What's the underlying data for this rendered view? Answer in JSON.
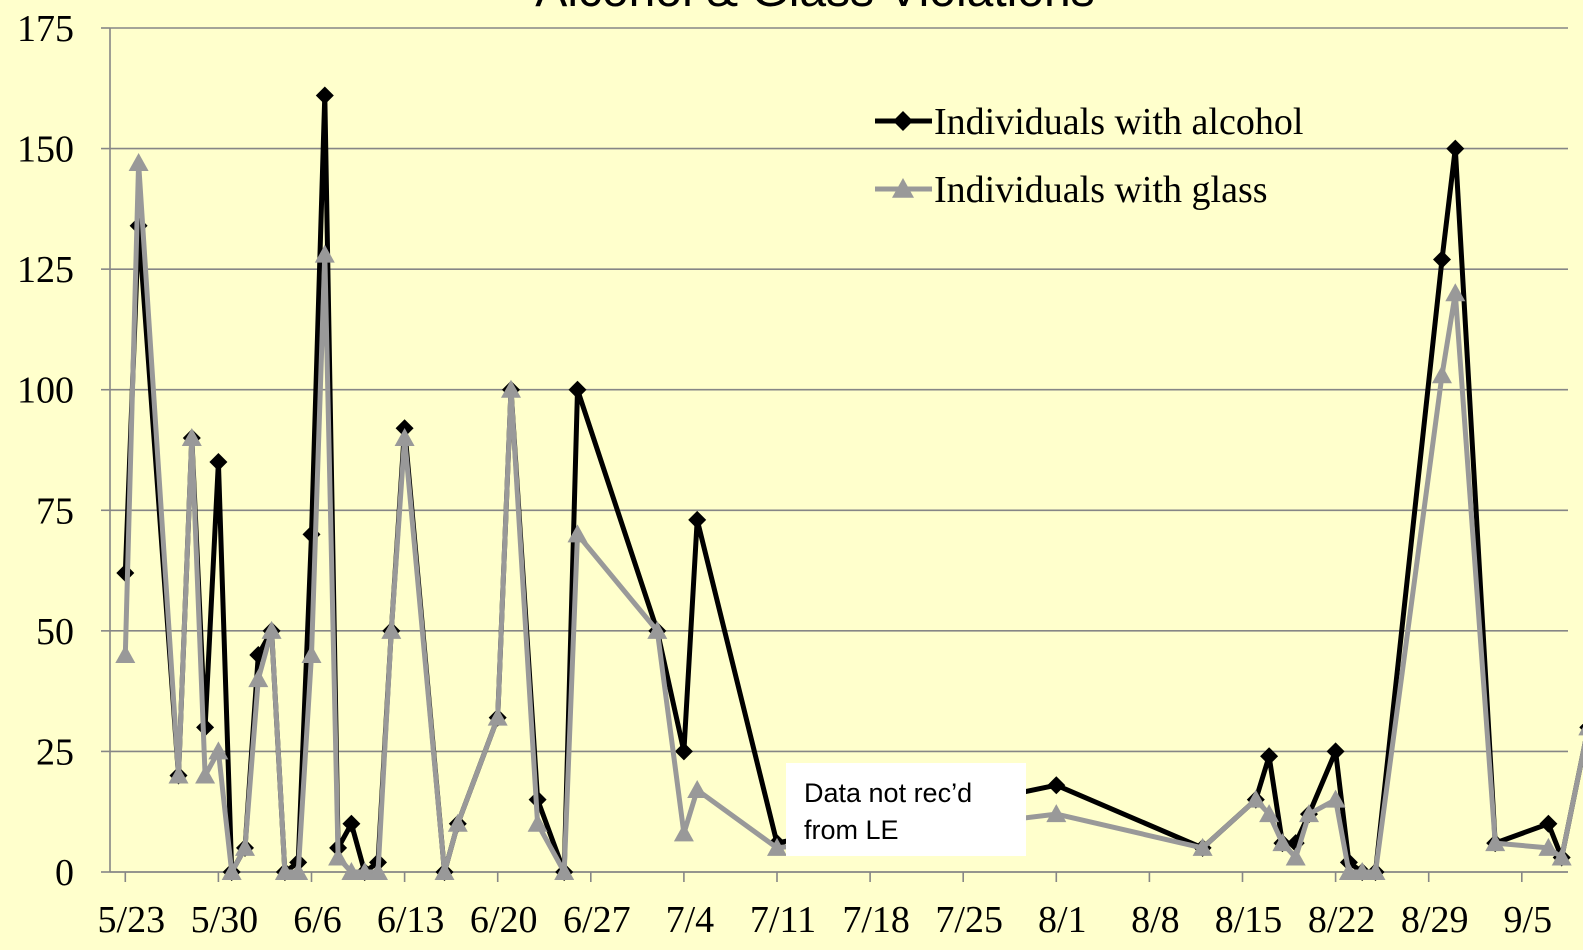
{
  "chart_data": {
    "type": "line",
    "title": "Alcohol & Glass Violations",
    "xlabel": "",
    "ylabel": "",
    "ylim": [
      0,
      175
    ],
    "yticks": [
      "0",
      "25",
      "50",
      "75",
      "100",
      "125",
      "150",
      "175"
    ],
    "xlim": [
      "5/22",
      "9/8"
    ],
    "xticks": [
      "5/23",
      "5/30",
      "6/6",
      "6/13",
      "6/20",
      "6/27",
      "7/4",
      "7/11",
      "7/18",
      "7/25",
      "8/1",
      "8/8",
      "8/15",
      "8/22",
      "8/29",
      "9/5"
    ],
    "grid": "horizontal",
    "legend": "top-right",
    "annotation": [
      "Data not rec’d",
      "from LE"
    ],
    "series": [
      {
        "name": "Individuals with alcohol",
        "color": "#000000",
        "marker": "diamond",
        "points": [
          [
            "5/23",
            62
          ],
          [
            "5/24",
            134
          ],
          [
            "5/27",
            20
          ],
          [
            "5/28",
            90
          ],
          [
            "5/29",
            30
          ],
          [
            "5/30",
            85
          ],
          [
            "5/31",
            0
          ],
          [
            "6/1",
            5
          ],
          [
            "6/2",
            45
          ],
          [
            "6/3",
            50
          ],
          [
            "6/4",
            0
          ],
          [
            "6/5",
            2
          ],
          [
            "6/6",
            70
          ],
          [
            "6/7",
            161
          ],
          [
            "6/8",
            5
          ],
          [
            "6/9",
            10
          ],
          [
            "6/10",
            0
          ],
          [
            "6/11",
            2
          ],
          [
            "6/12",
            50
          ],
          [
            "6/13",
            92
          ],
          [
            "6/16",
            0
          ],
          [
            "6/17",
            10
          ],
          [
            "6/20",
            32
          ],
          [
            "6/21",
            100
          ],
          [
            "6/23",
            15
          ],
          [
            "6/25",
            0
          ],
          [
            "6/26",
            100
          ],
          [
            "7/2",
            50
          ],
          [
            "7/4",
            25
          ],
          [
            "7/5",
            73
          ],
          [
            "7/11",
            6
          ],
          [
            "8/1",
            18
          ],
          [
            "8/12",
            5
          ],
          [
            "8/16",
            15
          ],
          [
            "8/17",
            24
          ],
          [
            "8/18",
            6
          ],
          [
            "8/19",
            6
          ],
          [
            "8/20",
            12
          ],
          [
            "8/22",
            25
          ],
          [
            "8/23",
            2
          ],
          [
            "8/24",
            0
          ],
          [
            "8/25",
            0
          ],
          [
            "8/30",
            127
          ],
          [
            "8/31",
            150
          ],
          [
            "9/3",
            6
          ],
          [
            "9/7",
            10
          ],
          [
            "9/8",
            3
          ],
          [
            "9/10",
            30
          ]
        ]
      },
      {
        "name": "Individuals with glass",
        "color": "#999999",
        "marker": "triangle",
        "points": [
          [
            "5/23",
            45
          ],
          [
            "5/24",
            147
          ],
          [
            "5/27",
            20
          ],
          [
            "5/28",
            90
          ],
          [
            "5/29",
            20
          ],
          [
            "5/30",
            25
          ],
          [
            "5/31",
            0
          ],
          [
            "6/1",
            5
          ],
          [
            "6/2",
            40
          ],
          [
            "6/3",
            50
          ],
          [
            "6/4",
            0
          ],
          [
            "6/5",
            0
          ],
          [
            "6/6",
            45
          ],
          [
            "6/7",
            128
          ],
          [
            "6/8",
            3
          ],
          [
            "6/9",
            0
          ],
          [
            "6/10",
            0
          ],
          [
            "6/11",
            0
          ],
          [
            "6/12",
            50
          ],
          [
            "6/13",
            90
          ],
          [
            "6/16",
            0
          ],
          [
            "6/17",
            10
          ],
          [
            "6/20",
            32
          ],
          [
            "6/21",
            100
          ],
          [
            "6/23",
            10
          ],
          [
            "6/25",
            0
          ],
          [
            "6/26",
            70
          ],
          [
            "7/2",
            50
          ],
          [
            "7/4",
            8
          ],
          [
            "7/5",
            17
          ],
          [
            "7/11",
            5
          ],
          [
            "8/1",
            12
          ],
          [
            "8/12",
            5
          ],
          [
            "8/16",
            15
          ],
          [
            "8/17",
            12
          ],
          [
            "8/18",
            6
          ],
          [
            "8/19",
            3
          ],
          [
            "8/20",
            12
          ],
          [
            "8/22",
            15
          ],
          [
            "8/23",
            0
          ],
          [
            "8/24",
            0
          ],
          [
            "8/25",
            0
          ],
          [
            "8/30",
            103
          ],
          [
            "8/31",
            120
          ],
          [
            "9/3",
            6
          ],
          [
            "9/7",
            5
          ],
          [
            "9/8",
            3
          ],
          [
            "9/10",
            30
          ]
        ]
      }
    ]
  }
}
